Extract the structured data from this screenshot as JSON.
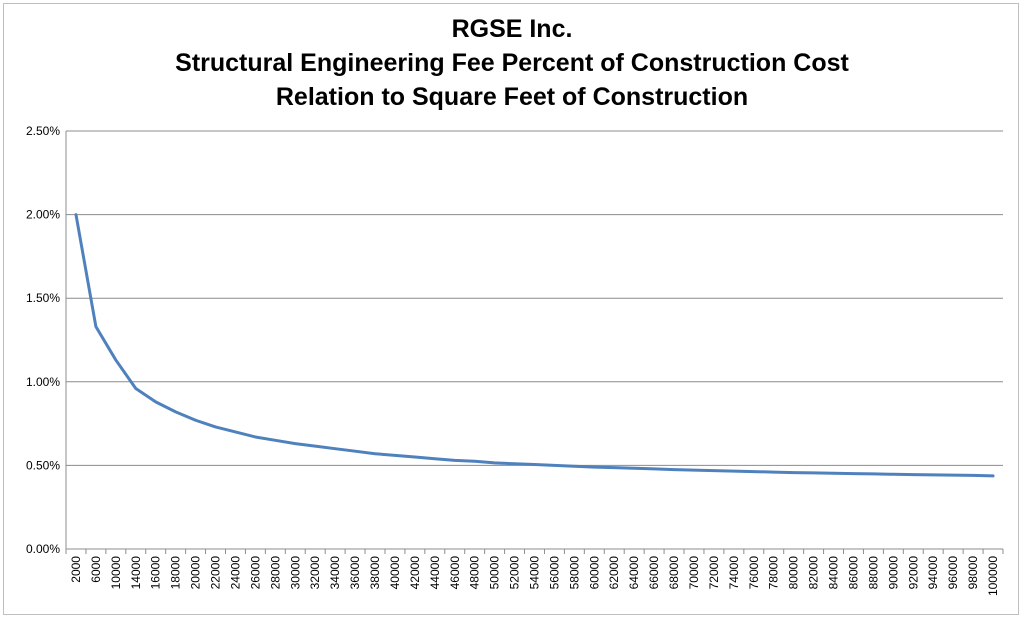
{
  "chart_data": {
    "type": "line",
    "title_lines": [
      "RGSE Inc.",
      "Structural Engineering Fee Percent of Construction Cost",
      "Relation to Square Feet of Construction"
    ],
    "xlabel": "",
    "ylabel": "",
    "grid": true,
    "legend": "none",
    "line_color": "#4f81bd",
    "ylim": [
      0,
      2.5
    ],
    "y_ticks": [
      "0.00%",
      "0.50%",
      "1.00%",
      "1.50%",
      "2.00%",
      "2.50%"
    ],
    "x_tick_labels": [
      "2000",
      "6000",
      "10000",
      "14000",
      "16000",
      "18000",
      "20000",
      "22000",
      "24000",
      "26000",
      "28000",
      "30000",
      "32000",
      "34000",
      "36000",
      "38000",
      "40000",
      "42000",
      "44000",
      "46000",
      "48000",
      "50000",
      "52000",
      "54000",
      "56000",
      "58000",
      "60000",
      "62000",
      "64000",
      "66000",
      "68000",
      "70000",
      "72000",
      "74000",
      "76000",
      "78000",
      "80000",
      "82000",
      "84000",
      "86000",
      "88000",
      "90000",
      "92000",
      "94000",
      "96000",
      "98000",
      "100000"
    ],
    "series": [
      {
        "x": [
          2000,
          6000,
          10000,
          14000,
          16000,
          18000,
          20000,
          22000,
          24000,
          26000,
          28000,
          30000,
          32000,
          34000,
          36000,
          38000,
          40000,
          42000,
          44000,
          46000,
          48000,
          50000,
          52000,
          54000,
          56000,
          58000,
          60000,
          62000,
          64000,
          66000,
          68000,
          70000,
          72000,
          74000,
          76000,
          78000,
          80000,
          82000,
          84000,
          86000,
          88000,
          90000,
          92000,
          94000,
          96000,
          98000,
          100000
        ],
        "y": [
          2.0,
          1.33,
          1.13,
          0.96,
          0.88,
          0.82,
          0.77,
          0.73,
          0.7,
          0.67,
          0.65,
          0.63,
          0.615,
          0.6,
          0.585,
          0.57,
          0.56,
          0.55,
          0.54,
          0.53,
          0.525,
          0.515,
          0.51,
          0.505,
          0.5,
          0.495,
          0.49,
          0.487,
          0.483,
          0.479,
          0.475,
          0.472,
          0.469,
          0.466,
          0.463,
          0.46,
          0.457,
          0.455,
          0.453,
          0.451,
          0.449,
          0.447,
          0.445,
          0.443,
          0.442,
          0.44,
          0.437
        ]
      }
    ]
  }
}
